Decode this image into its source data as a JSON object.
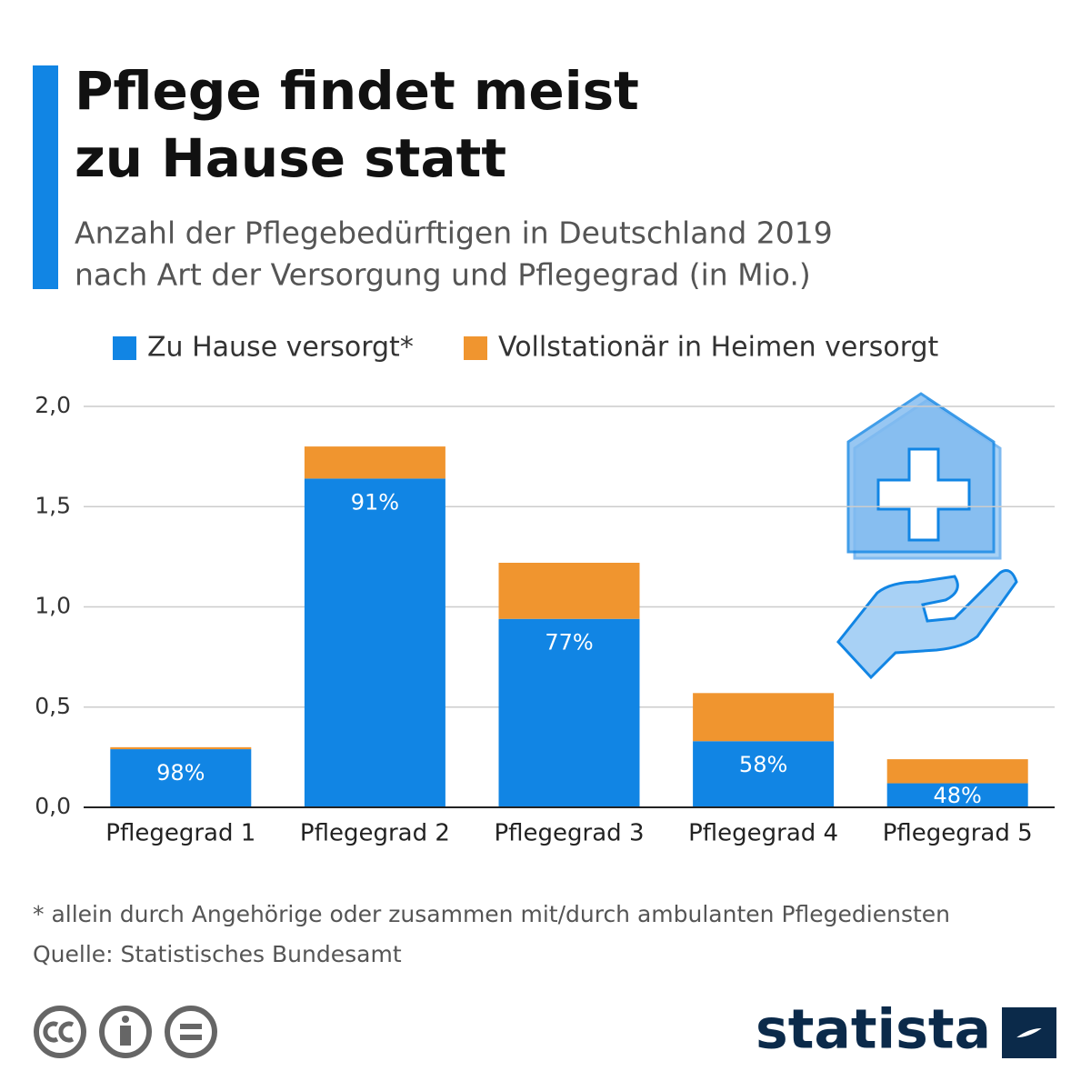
{
  "chart_data": {
    "type": "stacked-bar",
    "title": [
      "Pflege findet meist",
      "zu Hause statt"
    ],
    "subtitle": [
      "Anzahl der Pflegebedürftigen in Deutschland 2019",
      "nach Art der Versorgung und Pflegegrad (in Mio.)"
    ],
    "categories": [
      "Pflegegrad 1",
      "Pflegegrad 2",
      "Pflegegrad 3",
      "Pflegegrad 4",
      "Pflegegrad 5"
    ],
    "series": [
      {
        "name": "Zu Hause versorgt*",
        "color": "#1185e4",
        "values": [
          0.29,
          1.64,
          0.94,
          0.33,
          0.12
        ],
        "share_labels": [
          "98%",
          "91%",
          "77%",
          "58%",
          "48%"
        ]
      },
      {
        "name": "Vollstationär in Heimen versorgt",
        "color": "#f0952f",
        "values": [
          0.01,
          0.16,
          0.28,
          0.24,
          0.12
        ]
      }
    ],
    "ylim": [
      0,
      2
    ],
    "yticks": [
      {
        "value": 0,
        "label": "0,0"
      },
      {
        "value": 0.5,
        "label": "0,5"
      },
      {
        "value": 1,
        "label": "1,0"
      },
      {
        "value": 1.5,
        "label": "1,5"
      },
      {
        "value": 2,
        "label": "2,0"
      }
    ],
    "grid": true,
    "footnote": "* allein durch Angehörige oder zusammen mit/durch ambulanten Pflegediensten",
    "source": "Quelle: Statistisches Bundesamt",
    "brand": "statista"
  }
}
